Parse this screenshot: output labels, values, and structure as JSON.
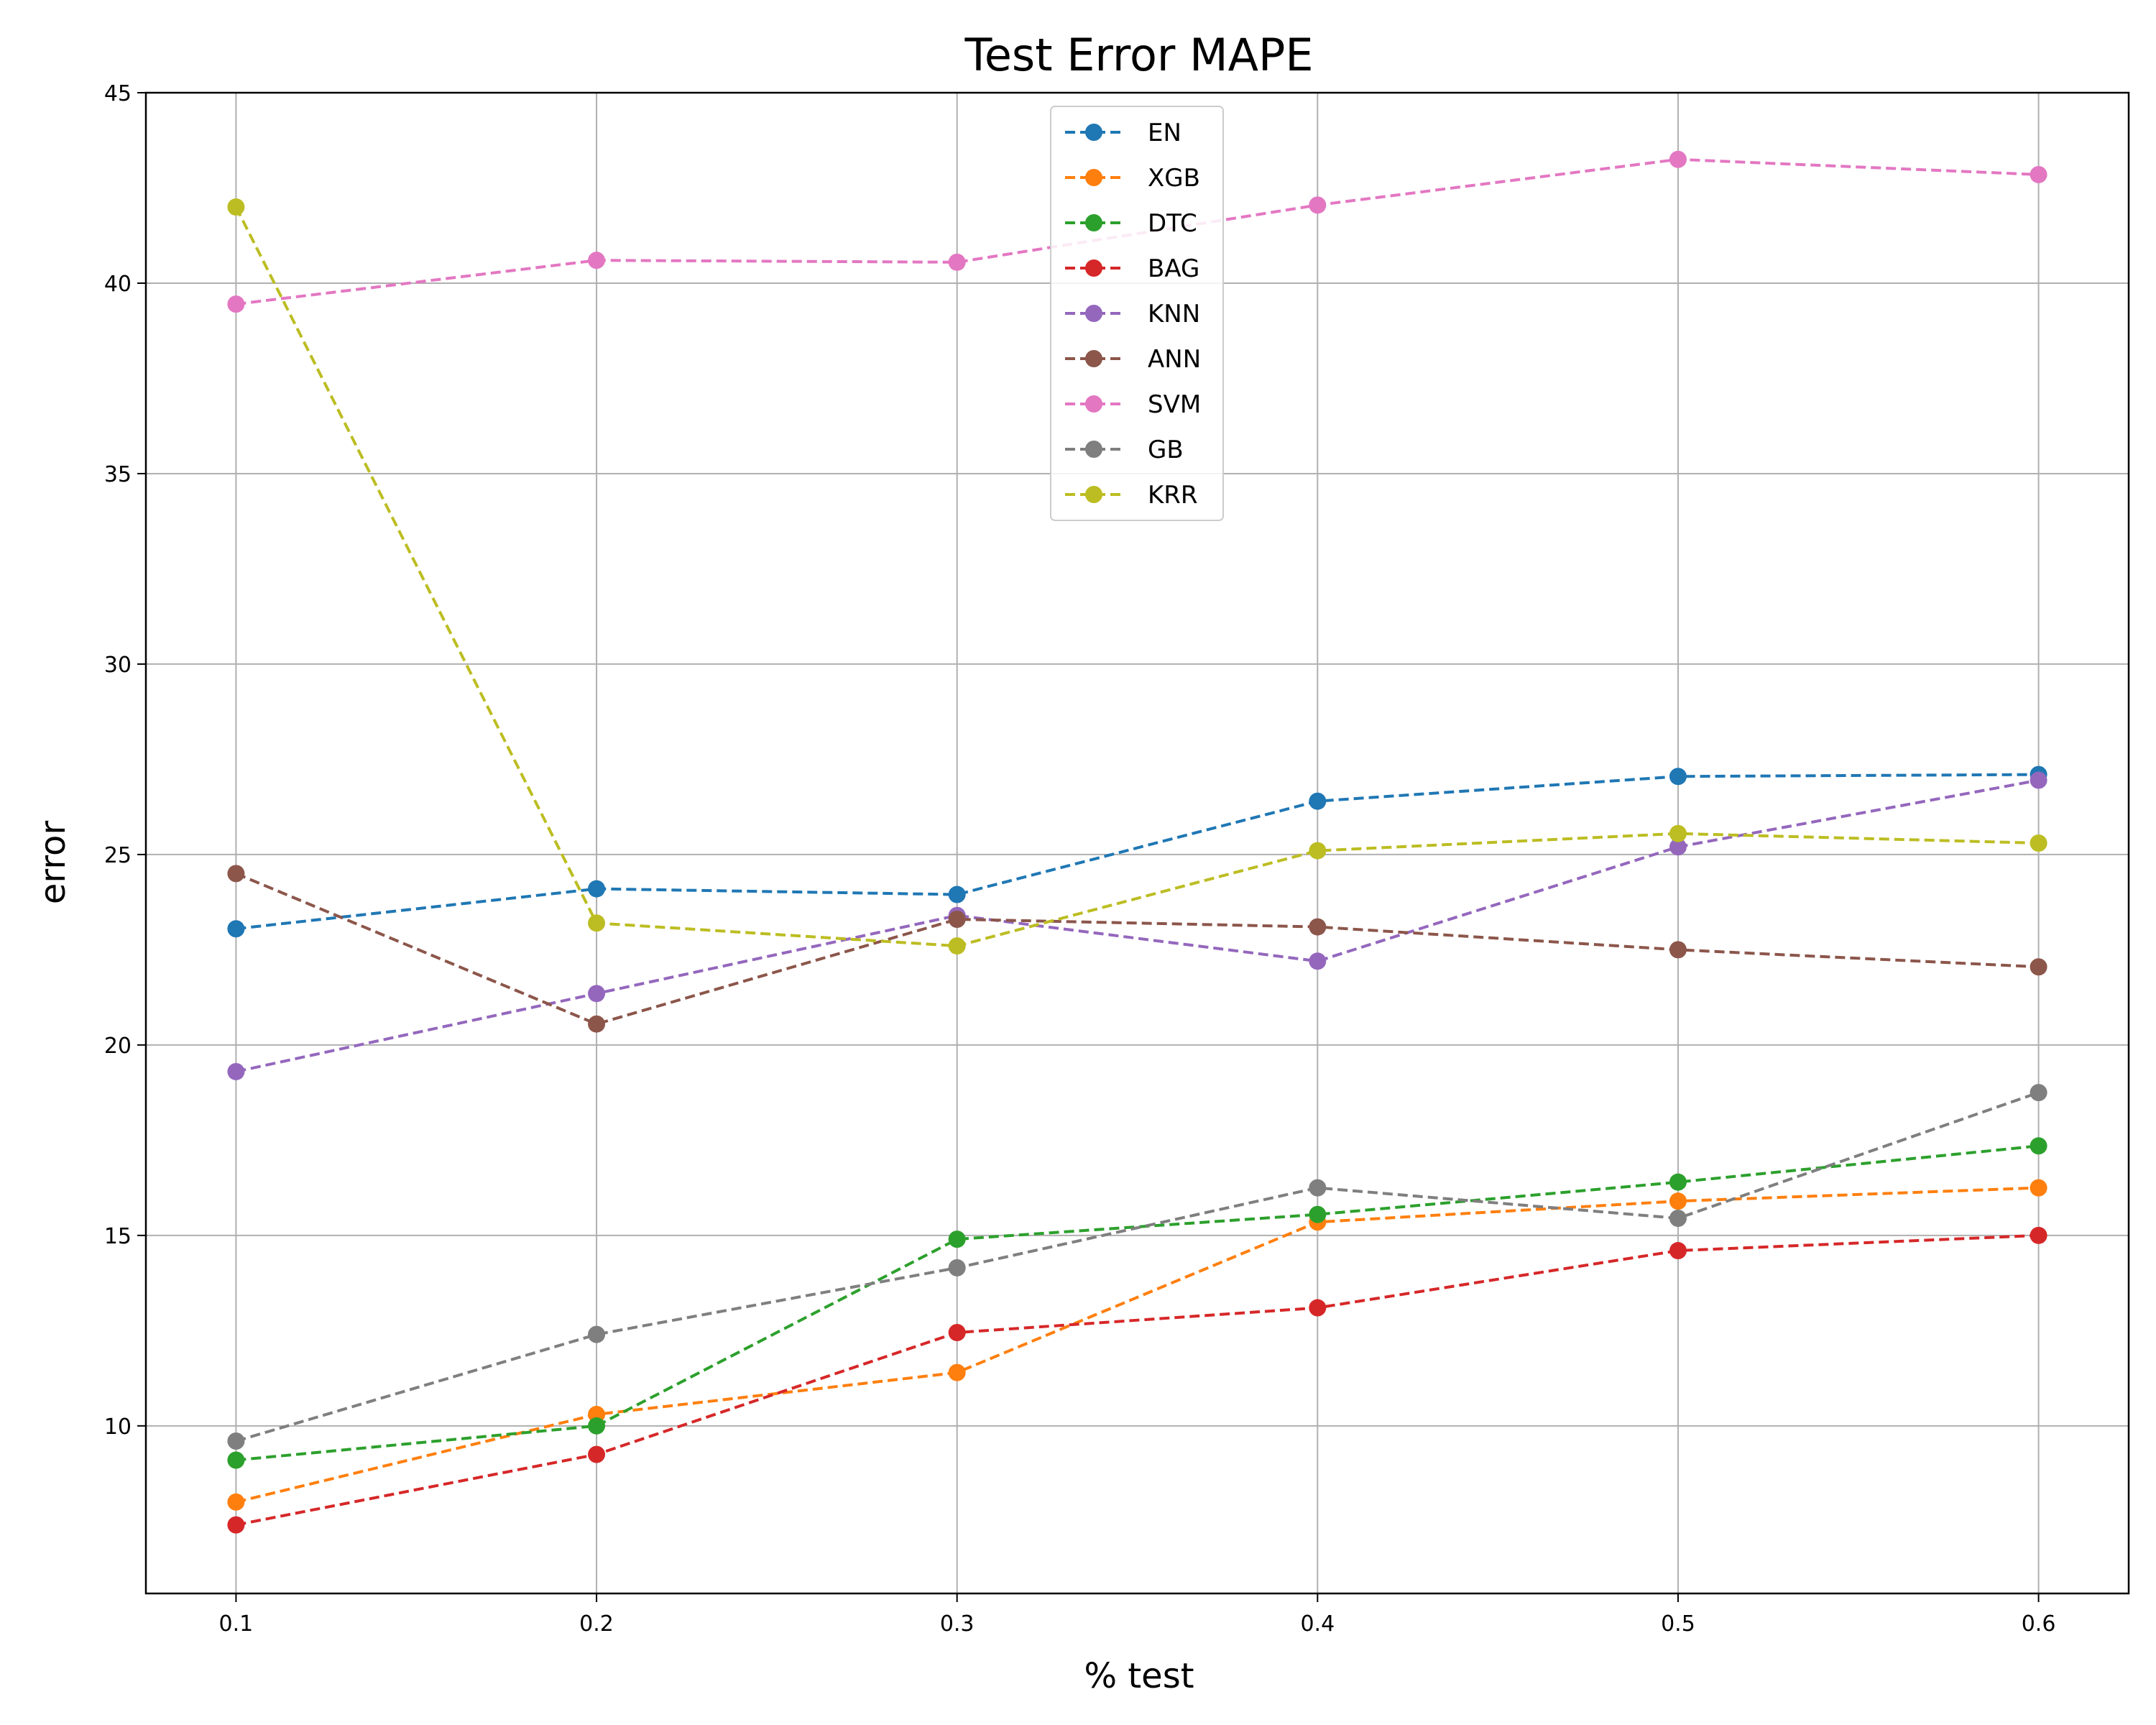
{
  "chart_data": {
    "type": "line",
    "title": "Test Error MAPE",
    "xlabel": "% test",
    "ylabel": "error",
    "x": [
      0.1,
      0.2,
      0.3,
      0.4,
      0.5,
      0.6
    ],
    "x_tick_labels": [
      "0.1",
      "0.2",
      "0.3",
      "0.4",
      "0.5",
      "0.6"
    ],
    "y_ticks": [
      10,
      15,
      20,
      25,
      30,
      35,
      40,
      45
    ],
    "xlim": [
      0.075,
      0.625
    ],
    "ylim": [
      5.6,
      45.0
    ],
    "grid": true,
    "legend_position": "top-center",
    "line_style": "dashed",
    "marker": "circle",
    "series": [
      {
        "name": "EN",
        "color": "#1f77b4",
        "values": [
          23.05,
          24.1,
          23.95,
          26.4,
          27.05,
          27.1
        ]
      },
      {
        "name": "XGB",
        "color": "#ff7f0e",
        "values": [
          8.0,
          10.3,
          11.4,
          15.35,
          15.9,
          16.25
        ]
      },
      {
        "name": "DTC",
        "color": "#2ca02c",
        "values": [
          9.1,
          10.0,
          14.9,
          15.55,
          16.4,
          17.35
        ]
      },
      {
        "name": "BAG",
        "color": "#d62728",
        "values": [
          7.4,
          9.25,
          12.45,
          13.1,
          14.6,
          15.0
        ]
      },
      {
        "name": "KNN",
        "color": "#9467bd",
        "values": [
          19.3,
          21.35,
          23.4,
          22.2,
          25.2,
          26.95
        ]
      },
      {
        "name": "ANN",
        "color": "#8c564b",
        "values": [
          24.5,
          20.55,
          23.3,
          23.1,
          22.5,
          22.05
        ]
      },
      {
        "name": "SVM",
        "color": "#e377c2",
        "values": [
          39.45,
          40.6,
          40.55,
          42.05,
          43.25,
          42.85
        ]
      },
      {
        "name": "GB",
        "color": "#7f7f7f",
        "values": [
          9.6,
          12.4,
          14.15,
          16.25,
          15.45,
          18.75
        ]
      },
      {
        "name": "KRR",
        "color": "#bcbd22",
        "values": [
          42.0,
          23.2,
          22.6,
          25.1,
          25.55,
          25.3
        ]
      }
    ]
  }
}
